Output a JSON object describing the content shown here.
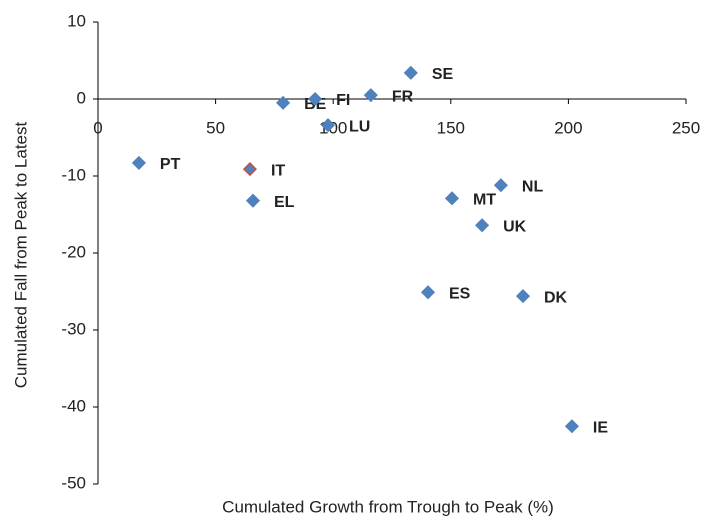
{
  "chart_data": {
    "type": "scatter",
    "xlabel": "Cumulated Growth from Trough to Peak (%)",
    "ylabel": "Cumulated Fall from Peak to Latest",
    "labels": [
      "PT",
      "IT",
      "EL",
      "BE",
      "FI",
      "LU",
      "FR",
      "SE",
      "MT",
      "NL",
      "UK",
      "ES",
      "DK",
      "IE"
    ],
    "x": [
      17.4,
      64.6,
      65.9,
      78.7,
      92.3,
      97.8,
      116,
      133,
      150.5,
      171.3,
      163.3,
      140.3,
      180.7,
      201.5
    ],
    "values": [
      -8.3,
      -9.1,
      -13.2,
      -0.5,
      0,
      -3.4,
      0.5,
      3.4,
      -12.9,
      -11.2,
      -16.4,
      -25.1,
      -25.6,
      -42.5
    ],
    "color": "#4f81bd",
    "edgecolors": [
      "#4f81bd",
      "#c0504d",
      "#4f81bd",
      "#4f81bd",
      "#4f81bd",
      "#4f81bd",
      "#4f81bd",
      "#4f81bd",
      "#4f81bd",
      "#4f81bd",
      "#4f81bd",
      "#4f81bd",
      "#4f81bd",
      "#4f81bd"
    ],
    "xlim": [
      0,
      250
    ],
    "xticks": [
      0,
      50,
      100,
      150,
      200,
      250
    ],
    "ylim": [
      -50,
      10
    ],
    "yticks": [
      -50,
      -40,
      -30,
      -20,
      -10,
      0,
      10
    ]
  }
}
